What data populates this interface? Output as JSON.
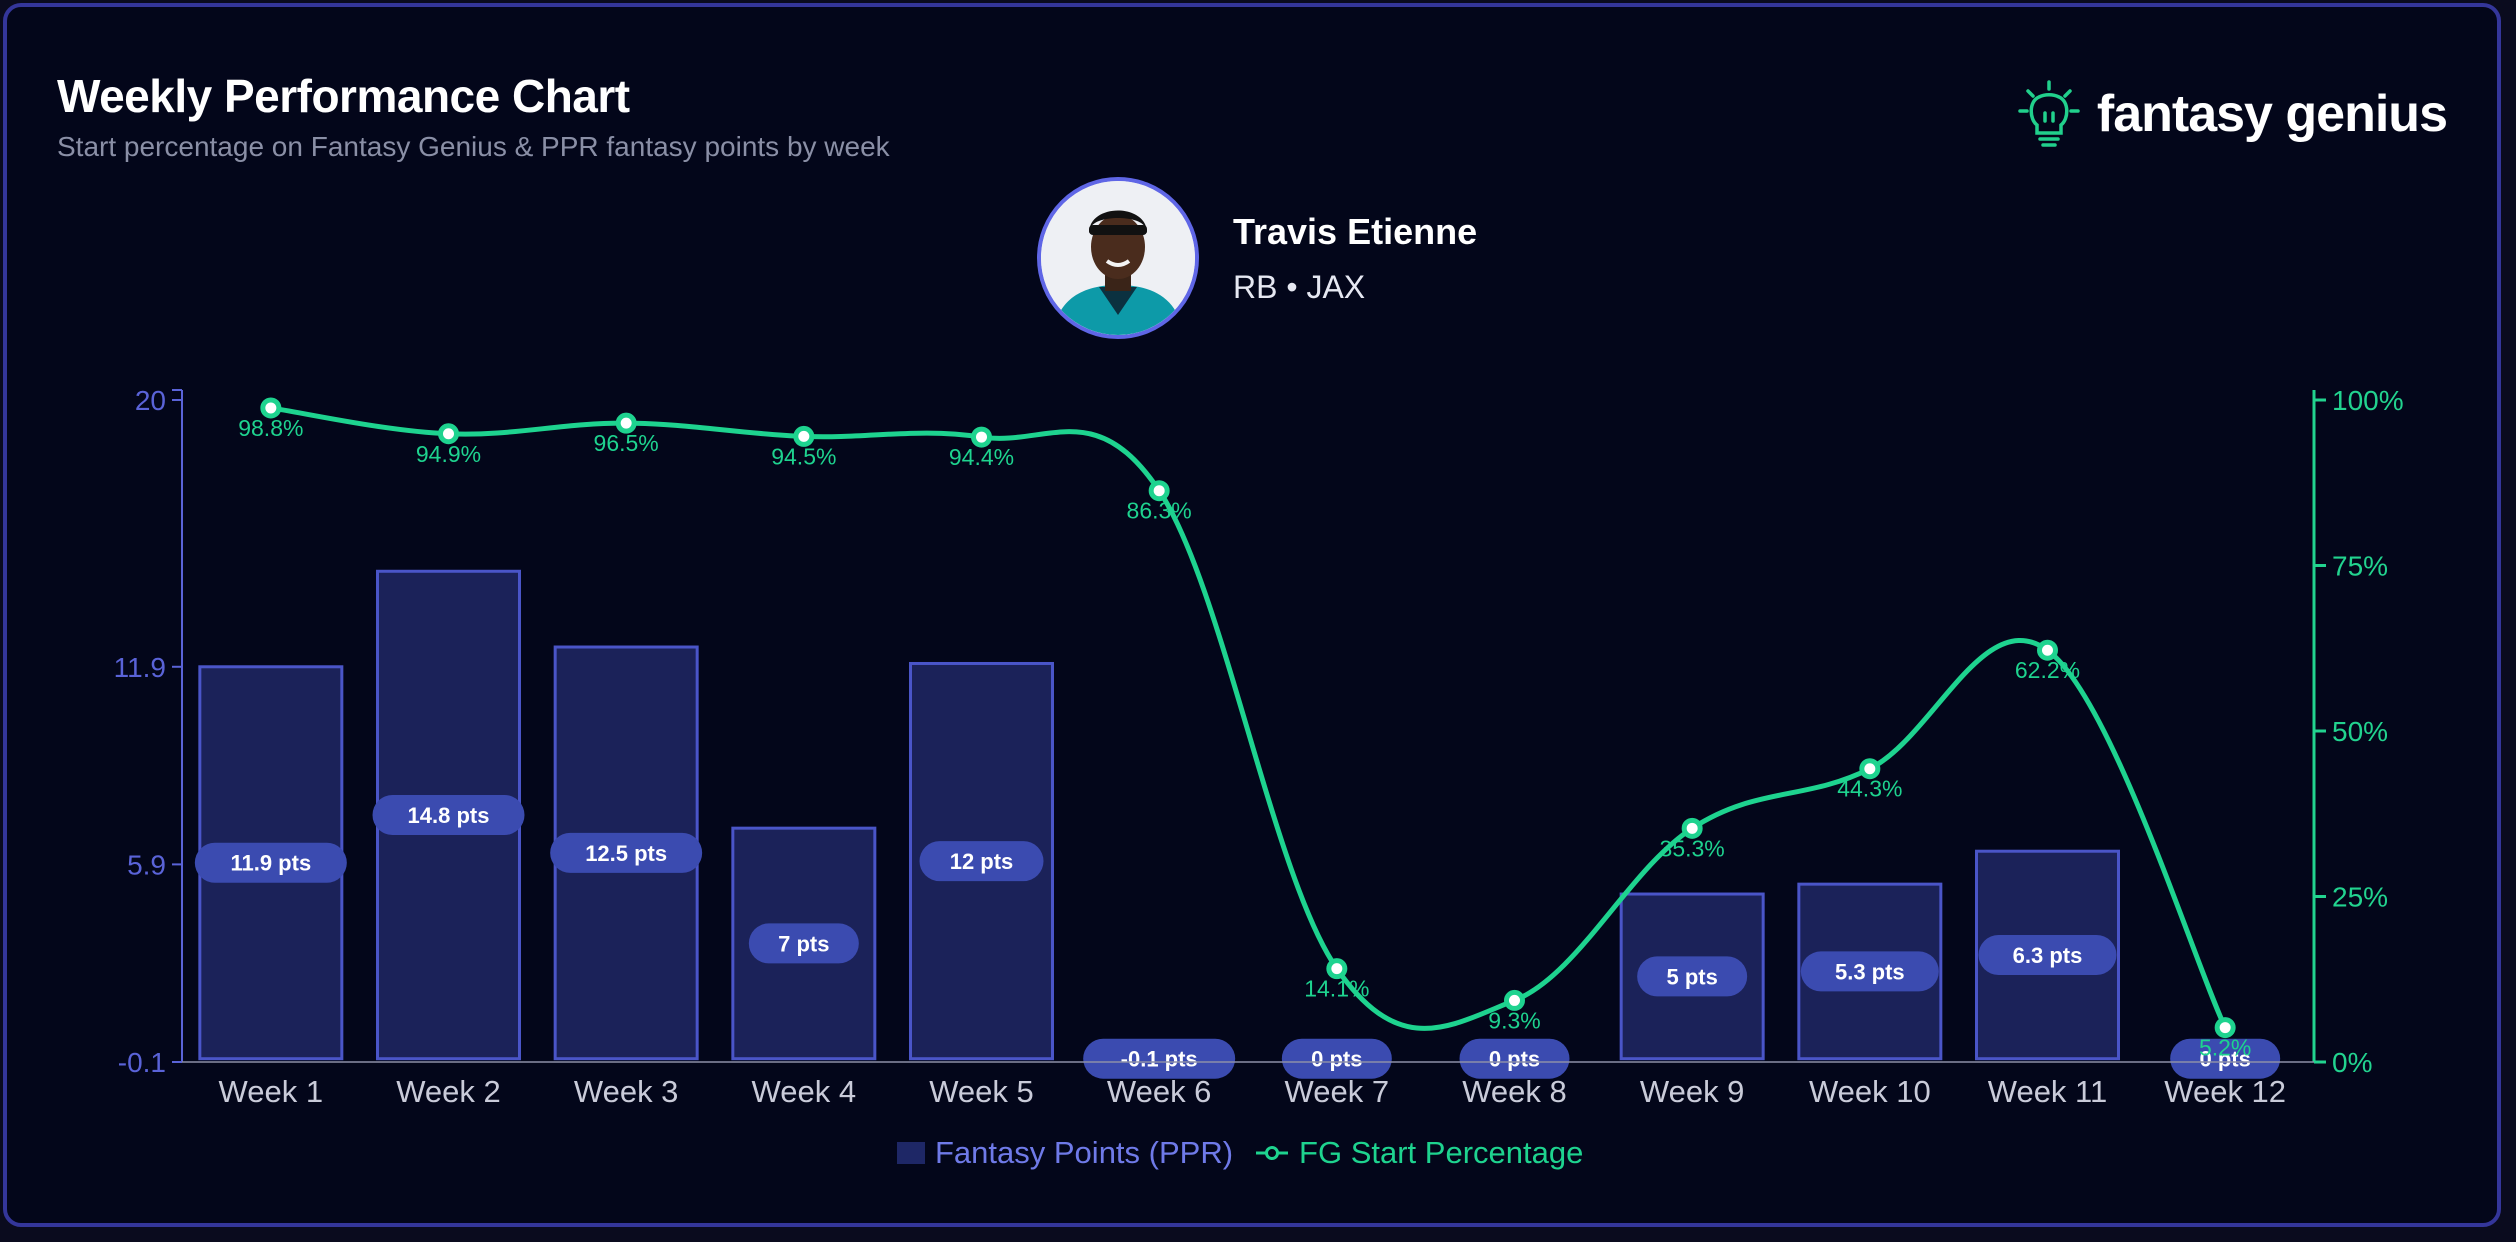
{
  "header": {
    "title": "Weekly Performance Chart",
    "subtitle": "Start percentage on Fantasy Genius & PPR fantasy points by week"
  },
  "brand": {
    "name": "fantasy genius",
    "icon": "lightbulb-icon",
    "accent": "#21d08c"
  },
  "player": {
    "name": "Travis Etienne",
    "position": "RB",
    "team": "JAX",
    "meta": "RB • JAX"
  },
  "colors": {
    "bar_fill": "#1b2259",
    "bar_stroke": "#4a55c8",
    "bar_label_bg": "#3b4bb0",
    "line": "#1ed38f",
    "left_axis": "#5a63d8",
    "right_axis": "#22d38f",
    "tick_text": "#c9cbd9"
  },
  "chart_data": {
    "type": "bar",
    "categories": [
      "Week 1",
      "Week 2",
      "Week 3",
      "Week 4",
      "Week 5",
      "Week 6",
      "Week 7",
      "Week 8",
      "Week 9",
      "Week 10",
      "Week 11",
      "Week 12"
    ],
    "series": [
      {
        "name": "Fantasy Points (PPR)",
        "type": "bar",
        "axis": "left",
        "values": [
          11.9,
          14.8,
          12.5,
          7,
          12,
          -0.1,
          0,
          0,
          5,
          5.3,
          6.3,
          0
        ],
        "labels": [
          "11.9 pts",
          "14.8 pts",
          "12.5 pts",
          "7 pts",
          "12 pts",
          "-0.1 pts",
          "0 pts",
          "0 pts",
          "5 pts",
          "5.3 pts",
          "6.3 pts",
          "0 pts"
        ]
      },
      {
        "name": "FG Start Percentage",
        "type": "line",
        "axis": "right",
        "values": [
          98.8,
          94.9,
          96.5,
          94.5,
          94.4,
          86.3,
          14.1,
          9.3,
          35.3,
          44.3,
          62.2,
          5.2
        ],
        "labels": [
          "98.8%",
          "94.9%",
          "96.5%",
          "94.5%",
          "94.4%",
          "86.3%",
          "14.1%",
          "9.3%",
          "35.3%",
          "44.3%",
          "62.2%",
          "5.2%"
        ]
      }
    ],
    "y_left": {
      "ylim": [
        -0.1,
        20
      ],
      "ticks": [
        "-0.1",
        "5.9",
        "11.9",
        "20"
      ]
    },
    "y_right": {
      "ylim": [
        0,
        100
      ],
      "ticks": [
        "0%",
        "25%",
        "50%",
        "75%",
        "100%"
      ]
    },
    "legend": {
      "placement": "bottom-center"
    }
  }
}
